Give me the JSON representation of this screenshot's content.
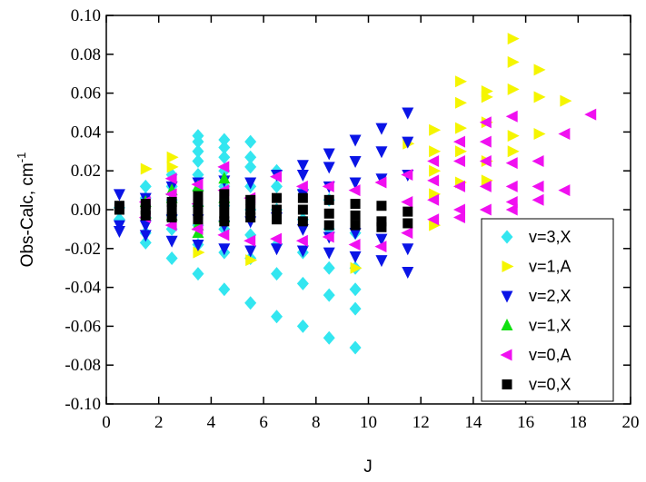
{
  "chart_data": {
    "type": "scatter",
    "x_label": "J",
    "y_label": "Obs-Calc, cm",
    "y_label_superscript": "-1",
    "xlim": [
      0,
      20
    ],
    "xticks": [
      0,
      2,
      4,
      6,
      8,
      10,
      12,
      14,
      16,
      18,
      20
    ],
    "ylim": [
      -0.1,
      0.1
    ],
    "yticks": [
      {
        "value": -0.1,
        "label": "-0.10"
      },
      {
        "value": -0.08,
        "label": "-0.08"
      },
      {
        "value": -0.06,
        "label": "-0.06"
      },
      {
        "value": -0.04,
        "label": "-0.04"
      },
      {
        "value": -0.02,
        "label": "-0.02"
      },
      {
        "value": 0,
        "label": "0.00"
      },
      {
        "value": 0.02,
        "label": "0.02"
      },
      {
        "value": 0.04,
        "label": "0.04"
      },
      {
        "value": 0.06,
        "label": "0.06"
      },
      {
        "value": 0.08,
        "label": "0.08"
      },
      {
        "value": 0.1,
        "label": "0.10"
      }
    ],
    "legend": "lower right",
    "series": [
      {
        "name": "v=3,X",
        "color": "#33e6f0",
        "marker": "diamond",
        "points": [
          [
            0.5,
            0.001
          ],
          [
            0.5,
            -0.005
          ],
          [
            1.5,
            0.012
          ],
          [
            1.5,
            0.006
          ],
          [
            1.5,
            -0.004
          ],
          [
            1.5,
            -0.012
          ],
          [
            1.5,
            -0.017
          ],
          [
            2.5,
            0.018
          ],
          [
            2.5,
            0.012
          ],
          [
            2.5,
            0.005
          ],
          [
            2.5,
            -0.003
          ],
          [
            2.5,
            -0.01
          ],
          [
            2.5,
            -0.025
          ],
          [
            3.5,
            0.038
          ],
          [
            3.5,
            0.035
          ],
          [
            3.5,
            0.03
          ],
          [
            3.5,
            0.025
          ],
          [
            3.5,
            0.018
          ],
          [
            3.5,
            0.01
          ],
          [
            3.5,
            0.002
          ],
          [
            3.5,
            -0.008
          ],
          [
            3.5,
            -0.018
          ],
          [
            3.5,
            -0.033
          ],
          [
            4.5,
            0.036
          ],
          [
            4.5,
            0.032
          ],
          [
            4.5,
            0.027
          ],
          [
            4.5,
            0.02
          ],
          [
            4.5,
            0.012
          ],
          [
            4.5,
            0.002
          ],
          [
            4.5,
            -0.01
          ],
          [
            4.5,
            -0.022
          ],
          [
            4.5,
            -0.041
          ],
          [
            5.5,
            0.035
          ],
          [
            5.5,
            0.027
          ],
          [
            5.5,
            0.022
          ],
          [
            5.5,
            0.012
          ],
          [
            5.5,
            0
          ],
          [
            5.5,
            -0.013
          ],
          [
            5.5,
            -0.025
          ],
          [
            5.5,
            -0.048
          ],
          [
            6.5,
            0.02
          ],
          [
            6.5,
            0.012
          ],
          [
            6.5,
            0
          ],
          [
            6.5,
            -0.018
          ],
          [
            6.5,
            -0.033
          ],
          [
            6.5,
            -0.055
          ],
          [
            7.5,
            0.01
          ],
          [
            7.5,
            -0.005
          ],
          [
            7.5,
            -0.022
          ],
          [
            7.5,
            -0.038
          ],
          [
            7.5,
            -0.06
          ],
          [
            8.5,
            0.005
          ],
          [
            8.5,
            -0.01
          ],
          [
            8.5,
            -0.03
          ],
          [
            8.5,
            -0.044
          ],
          [
            8.5,
            -0.066
          ],
          [
            9.5,
            -0.012
          ],
          [
            9.5,
            -0.03
          ],
          [
            9.5,
            -0.041
          ],
          [
            9.5,
            -0.051
          ],
          [
            9.5,
            -0.071
          ]
        ]
      },
      {
        "name": "v=1,A",
        "color": "#f5f500",
        "marker": "triangle-right",
        "points": [
          [
            1.5,
            0.021
          ],
          [
            2.5,
            0.027
          ],
          [
            2.5,
            0.022
          ],
          [
            3.5,
            -0.022
          ],
          [
            5.5,
            -0.026
          ],
          [
            9.5,
            -0.03
          ],
          [
            11.5,
            0.034
          ],
          [
            12.5,
            0.041
          ],
          [
            12.5,
            0.03
          ],
          [
            12.5,
            0.02
          ],
          [
            12.5,
            0.008
          ],
          [
            12.5,
            -0.008
          ],
          [
            13.5,
            0.066
          ],
          [
            13.5,
            0.055
          ],
          [
            13.5,
            0.042
          ],
          [
            13.5,
            0.03
          ],
          [
            13.5,
            0.014
          ],
          [
            14.5,
            0.061
          ],
          [
            14.5,
            0.058
          ],
          [
            14.5,
            0.045
          ],
          [
            14.5,
            0.025
          ],
          [
            14.5,
            0.015
          ],
          [
            15.5,
            0.088
          ],
          [
            15.5,
            0.076
          ],
          [
            15.5,
            0.062
          ],
          [
            15.5,
            0.038
          ],
          [
            15.5,
            0.03
          ],
          [
            16.5,
            0.072
          ],
          [
            16.5,
            0.058
          ],
          [
            16.5,
            0.039
          ],
          [
            17.5,
            0.056
          ]
        ]
      },
      {
        "name": "v=2,X",
        "color": "#0a14e6",
        "marker": "triangle-down",
        "points": [
          [
            0.5,
            0.008
          ],
          [
            0.5,
            -0.008
          ],
          [
            0.5,
            -0.011
          ],
          [
            1.5,
            0.006
          ],
          [
            1.5,
            -0.008
          ],
          [
            1.5,
            -0.013
          ],
          [
            2.5,
            0.012
          ],
          [
            2.5,
            -0.005
          ],
          [
            2.5,
            -0.016
          ],
          [
            3.5,
            0.014
          ],
          [
            3.5,
            -0.005
          ],
          [
            3.5,
            -0.018
          ],
          [
            4.5,
            0.015
          ],
          [
            4.5,
            -0.008
          ],
          [
            4.5,
            -0.02
          ],
          [
            5.5,
            0.014
          ],
          [
            5.5,
            -0.006
          ],
          [
            5.5,
            -0.021
          ],
          [
            6.5,
            0.018
          ],
          [
            6.5,
            -0.004
          ],
          [
            6.5,
            -0.02
          ],
          [
            7.5,
            0.023
          ],
          [
            7.5,
            0.018
          ],
          [
            7.5,
            0.008
          ],
          [
            7.5,
            -0.01
          ],
          [
            7.5,
            -0.021
          ],
          [
            8.5,
            0.029
          ],
          [
            8.5,
            0.022
          ],
          [
            8.5,
            0.012
          ],
          [
            8.5,
            -0.014
          ],
          [
            8.5,
            -0.022
          ],
          [
            9.5,
            0.036
          ],
          [
            9.5,
            0.025
          ],
          [
            9.5,
            0.014
          ],
          [
            9.5,
            -0.012
          ],
          [
            9.5,
            -0.024
          ],
          [
            10.5,
            0.042
          ],
          [
            10.5,
            0.03
          ],
          [
            10.5,
            0.016
          ],
          [
            10.5,
            -0.015
          ],
          [
            10.5,
            -0.026
          ],
          [
            11.5,
            0.05
          ],
          [
            11.5,
            0.035
          ],
          [
            11.5,
            0.018
          ],
          [
            11.5,
            -0.02
          ],
          [
            11.5,
            -0.032
          ]
        ]
      },
      {
        "name": "v=1,X",
        "color": "#10e010",
        "marker": "triangle-up",
        "points": [
          [
            1.5,
            0.004
          ],
          [
            1.5,
            -0.002
          ],
          [
            2.5,
            0.01
          ],
          [
            2.5,
            0.006
          ],
          [
            2.5,
            -0.003
          ],
          [
            3.5,
            0.012
          ],
          [
            3.5,
            0.004
          ],
          [
            3.5,
            -0.008
          ],
          [
            3.5,
            -0.012
          ],
          [
            4.5,
            0.016
          ],
          [
            4.5,
            0.006
          ],
          [
            4.5,
            -0.004
          ]
        ]
      },
      {
        "name": "v=0,A",
        "color": "#f010f0",
        "marker": "triangle-left",
        "points": [
          [
            1.5,
            0.004
          ],
          [
            1.5,
            -0.004
          ],
          [
            2.5,
            0.016
          ],
          [
            2.5,
            0.008
          ],
          [
            2.5,
            -0.008
          ],
          [
            3.5,
            0.013
          ],
          [
            3.5,
            0.003
          ],
          [
            3.5,
            -0.01
          ],
          [
            4.5,
            0.022
          ],
          [
            4.5,
            0.01
          ],
          [
            4.5,
            -0.013
          ],
          [
            5.5,
            0.006
          ],
          [
            5.5,
            -0.016
          ],
          [
            6.5,
            0.017
          ],
          [
            6.5,
            -0.015
          ],
          [
            7.5,
            0.012
          ],
          [
            7.5,
            -0.016
          ],
          [
            8.5,
            0.012
          ],
          [
            8.5,
            -0.014
          ],
          [
            9.5,
            0.01
          ],
          [
            9.5,
            -0.018
          ],
          [
            10.5,
            0.014
          ],
          [
            10.5,
            -0.019
          ],
          [
            11.5,
            0.018
          ],
          [
            11.5,
            0.004
          ],
          [
            11.5,
            -0.012
          ],
          [
            12.5,
            0.025
          ],
          [
            12.5,
            0.015
          ],
          [
            12.5,
            0.005
          ],
          [
            12.5,
            -0.005
          ],
          [
            13.5,
            0.035
          ],
          [
            13.5,
            0.025
          ],
          [
            13.5,
            0.012
          ],
          [
            13.5,
            0
          ],
          [
            13.5,
            -0.004
          ],
          [
            14.5,
            0.045
          ],
          [
            14.5,
            0.035
          ],
          [
            14.5,
            0.025
          ],
          [
            14.5,
            0.012
          ],
          [
            14.5,
            0
          ],
          [
            15.5,
            0.048
          ],
          [
            15.5,
            0.024
          ],
          [
            15.5,
            0.012
          ],
          [
            15.5,
            0.004
          ],
          [
            15.5,
            0
          ],
          [
            16.5,
            0.025
          ],
          [
            16.5,
            0.012
          ],
          [
            16.5,
            0.005
          ],
          [
            17.5,
            0.039
          ],
          [
            17.5,
            0.01
          ],
          [
            18.5,
            0.049
          ]
        ]
      },
      {
        "name": "v=0,X",
        "color": "#000000",
        "marker": "square",
        "points": [
          [
            0.5,
            0.002
          ],
          [
            0.5,
            0
          ],
          [
            1.5,
            0.003
          ],
          [
            1.5,
            0
          ],
          [
            1.5,
            -0.003
          ],
          [
            2.5,
            0.004
          ],
          [
            2.5,
            0
          ],
          [
            2.5,
            -0.004
          ],
          [
            3.5,
            0.007
          ],
          [
            3.5,
            0.003
          ],
          [
            3.5,
            -0.002
          ],
          [
            3.5,
            -0.005
          ],
          [
            4.5,
            0.008
          ],
          [
            4.5,
            0.003
          ],
          [
            4.5,
            -0.002
          ],
          [
            4.5,
            -0.006
          ],
          [
            5.5,
            0.005
          ],
          [
            5.5,
            0
          ],
          [
            5.5,
            -0.004
          ],
          [
            6.5,
            0.006
          ],
          [
            6.5,
            0
          ],
          [
            6.5,
            -0.005
          ],
          [
            7.5,
            0.006
          ],
          [
            7.5,
            0
          ],
          [
            7.5,
            -0.006
          ],
          [
            8.5,
            0.005
          ],
          [
            8.5,
            -0.002
          ],
          [
            8.5,
            -0.008
          ],
          [
            9.5,
            0.003
          ],
          [
            9.5,
            -0.003
          ],
          [
            9.5,
            -0.008
          ],
          [
            10.5,
            0.002
          ],
          [
            10.5,
            -0.006
          ],
          [
            10.5,
            -0.009
          ],
          [
            11.5,
            -0.001
          ],
          [
            11.5,
            -0.007
          ]
        ]
      }
    ]
  }
}
